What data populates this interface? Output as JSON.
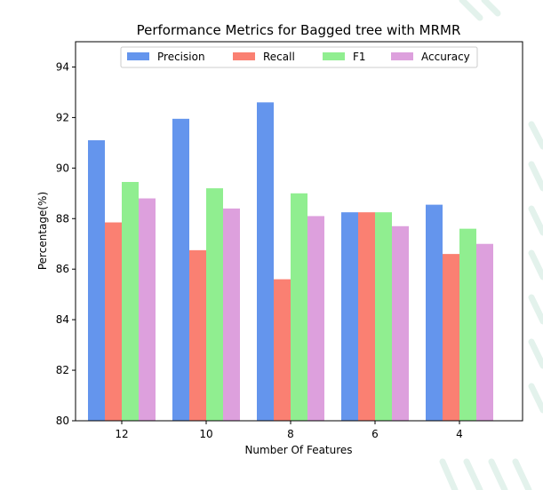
{
  "chart_data": {
    "type": "bar",
    "title": "Performance Metrics for Bagged tree with MRMR",
    "xlabel": "Number Of Features",
    "ylabel": "Percentage(%)",
    "categories": [
      "12",
      "10",
      "8",
      "6",
      "4"
    ],
    "ylim": [
      80,
      95
    ],
    "yticks": [
      "80",
      "82",
      "84",
      "86",
      "88",
      "90",
      "92",
      "94"
    ],
    "series": [
      {
        "name": "Precision",
        "color": "#6495ed",
        "values": [
          91.1,
          91.95,
          92.6,
          88.25,
          88.55
        ]
      },
      {
        "name": "Recall",
        "color": "#fa8072",
        "values": [
          87.85,
          86.75,
          85.6,
          88.25,
          86.6
        ]
      },
      {
        "name": "F1",
        "color": "#90ee90",
        "values": [
          89.45,
          89.2,
          89.0,
          88.25,
          87.6
        ]
      },
      {
        "name": "Accuracy",
        "color": "#dda0dd",
        "values": [
          88.8,
          88.4,
          88.1,
          87.7,
          87.0
        ]
      }
    ],
    "legend_position": "top-center",
    "grid": false
  }
}
